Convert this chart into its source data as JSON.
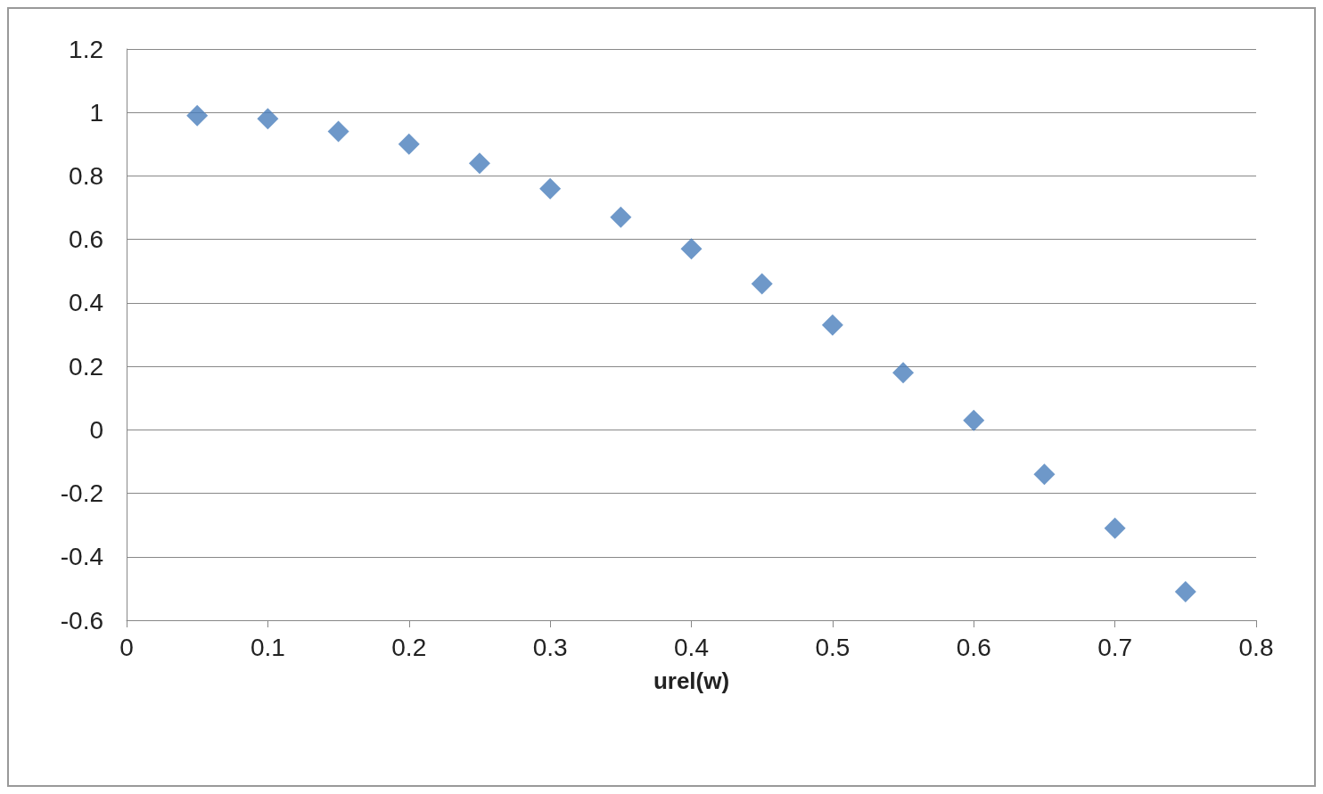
{
  "chart_data": {
    "type": "scatter",
    "xlabel": "urel(w)",
    "x": [
      0.05,
      0.1,
      0.15,
      0.2,
      0.25,
      0.3,
      0.35,
      0.4,
      0.45,
      0.5,
      0.55,
      0.6,
      0.65,
      0.7,
      0.75
    ],
    "series": [
      {
        "color": "#4a7ebb",
        "values": [
          0.99,
          0.98,
          0.94,
          0.9,
          0.84,
          0.76,
          0.67,
          0.57,
          0.46,
          0.33,
          0.18,
          0.03,
          -0.14,
          -0.31,
          -0.51
        ]
      }
    ],
    "xlim": [
      0,
      0.8
    ],
    "xticks": [
      0,
      0.1,
      0.2,
      0.3,
      0.4,
      0.5,
      0.6,
      0.7,
      0.8
    ],
    "ylim": [
      -0.6,
      1.2
    ],
    "yticks": [
      -0.6,
      -0.4,
      -0.2,
      0,
      0.2,
      0.4,
      0.6,
      0.8,
      1,
      1.2
    ],
    "grid": "y",
    "marker": "diamond"
  }
}
